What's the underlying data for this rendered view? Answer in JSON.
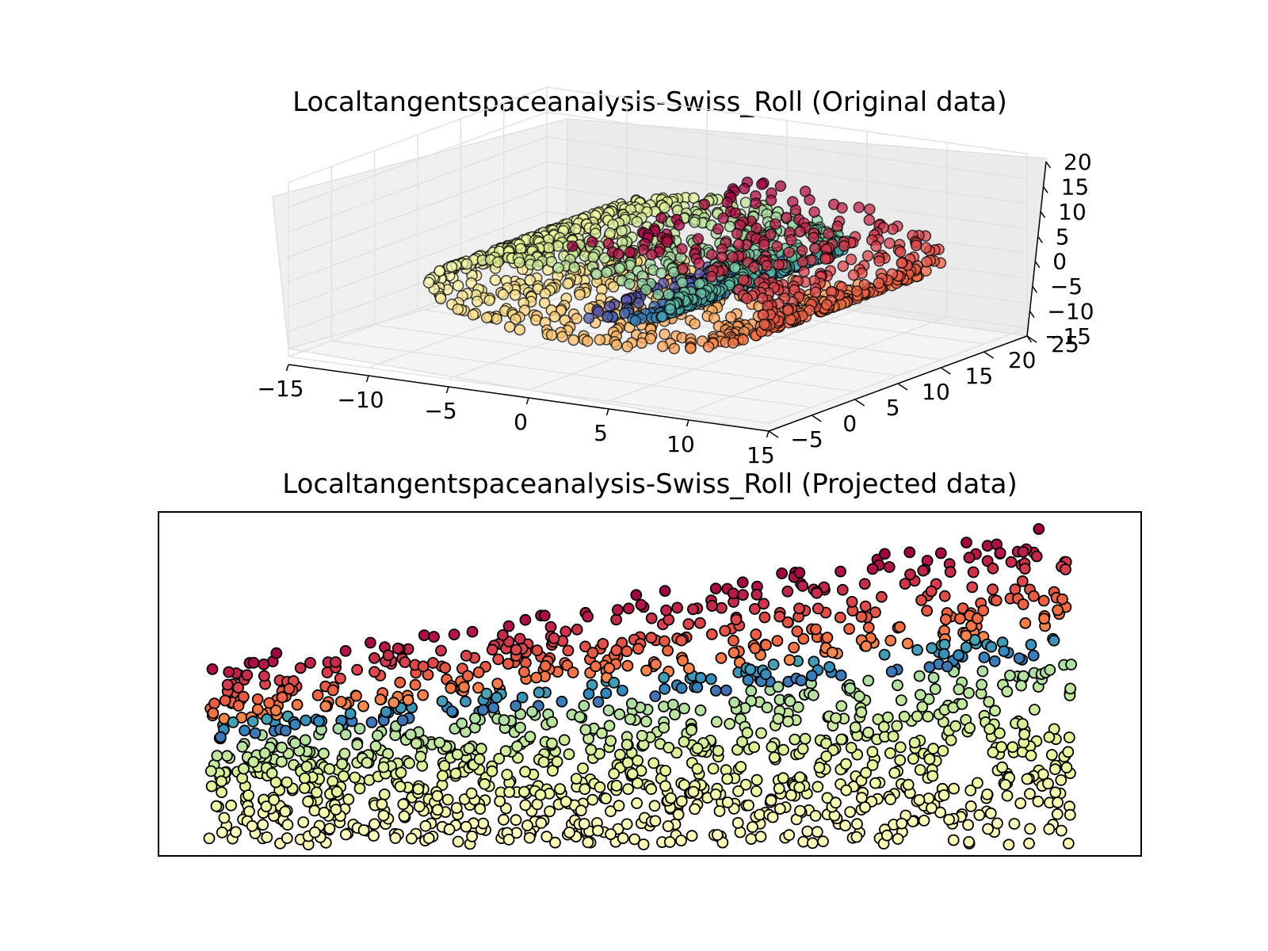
{
  "chart_data": [
    {
      "type": "scatter",
      "projection": "3d",
      "title": "Localtangentspaceanalysis-Swiss_Roll (Original data)",
      "colormap": "Spectral",
      "grid": true,
      "xlim": [
        -15,
        15
      ],
      "ylim": [
        -5,
        25
      ],
      "zlim": [
        -15,
        20
      ],
      "xticks": [
        "−15",
        "−10",
        "−5",
        "0",
        "5",
        "10",
        "15"
      ],
      "yticks": [
        "−5",
        "0",
        "5",
        "10",
        "15",
        "20",
        "25"
      ],
      "zticks": [
        "−15",
        "−10",
        "−5",
        "0",
        "5",
        "10",
        "15",
        "20"
      ],
      "n_points": 1500,
      "points_generator": "swiss-roll: t in [4.71, 14.14], x = t·cos t, y in [0, 21], z = t·sin t; color by t"
    },
    {
      "type": "scatter",
      "title": "Localtangentspaceanalysis-Swiss_Roll (Projected data)",
      "colormap": "Spectral",
      "xticks": [],
      "yticks": [],
      "n_points": 1500,
      "points_generator": "2-D embedding of the same roll; points colored by roll parameter, red at top, yellow at bottom, blue band in middle"
    }
  ],
  "colors": {
    "spectral": [
      "#9e0142",
      "#d53e4f",
      "#f46d43",
      "#fdae61",
      "#fee08b",
      "#ffffbf",
      "#e6f598",
      "#abdda4",
      "#66c2a5",
      "#3288bd",
      "#5e4fa2"
    ],
    "pane": "#f2f2f2",
    "grid": "#e6e6e6",
    "edge": "#000000"
  }
}
